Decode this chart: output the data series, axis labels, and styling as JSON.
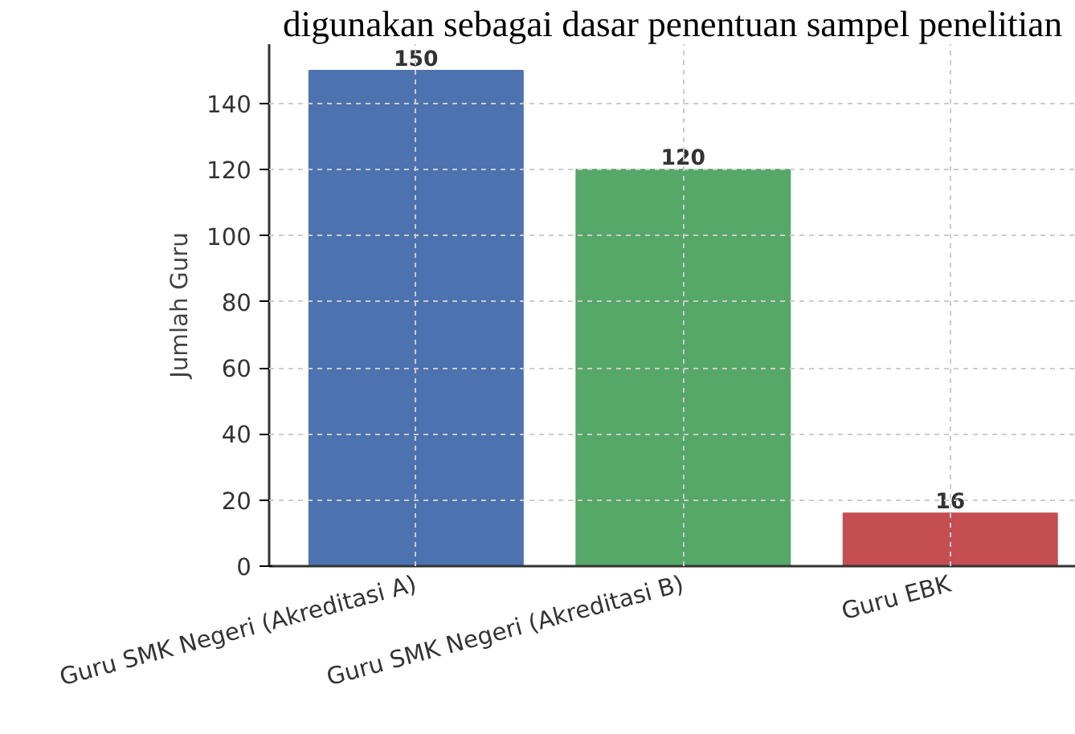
{
  "chart_data": {
    "type": "bar",
    "ylabel": "Jumlah Guru",
    "categories": [
      "Guru SMK Negeri (Akreditasi A)",
      "Guru SMK Negeri (Akreditasi B)",
      "Guru EBK"
    ],
    "values": [
      150,
      120,
      16
    ],
    "colors": [
      "#4c72b0",
      "#55a868",
      "#c44e52"
    ],
    "ylim": [
      0,
      158
    ],
    "yticks": [
      0,
      20,
      40,
      60,
      80,
      100,
      120,
      140
    ],
    "grid": true,
    "data_labels": true,
    "annotations": [
      "digunakan sebagai dasar penentuan sampel penelitian"
    ]
  }
}
